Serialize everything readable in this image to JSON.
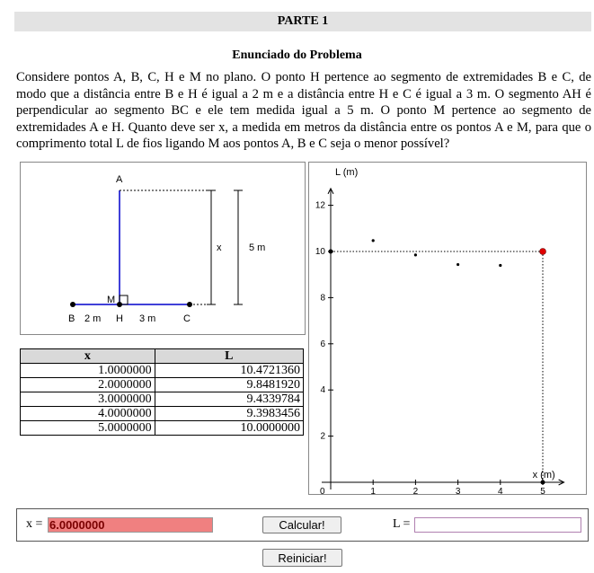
{
  "header": {
    "title": "PARTE 1"
  },
  "statement": {
    "heading": "Enunciado do Problema",
    "text": "Considere pontos A, B, C, H e M no plano. O ponto H pertence ao segmento de extremidades B e C, de modo que a distância entre B e H é igual a 2 m e a distância entre H e C é igual a 3 m. O segmento AH é perpendicular ao segmento BC e ele tem medida igual a 5 m. O ponto M pertence ao segmento de extremidades A e H. Quanto deve ser x, a medida em metros da distância entre os pontos A e M, para que o comprimento total L de fios ligando M aos pontos A, B e C seja o menor possível?"
  },
  "diagram": {
    "label_a": "A",
    "label_b": "B",
    "label_c": "C",
    "label_h": "H",
    "label_m": "M",
    "bh": "2 m",
    "hc": "3 m",
    "x_label": "x",
    "total": "5 m"
  },
  "table": {
    "headers": [
      "x",
      "L"
    ],
    "rows": [
      [
        "1.0000000",
        "10.4721360"
      ],
      [
        "2.0000000",
        "9.8481920"
      ],
      [
        "3.0000000",
        "9.4339784"
      ],
      [
        "4.0000000",
        "9.3983456"
      ],
      [
        "5.0000000",
        "10.0000000"
      ]
    ]
  },
  "chart_data": {
    "type": "scatter",
    "xlabel": "x (m)",
    "ylabel": "L (m)",
    "xlim": [
      0,
      5.5
    ],
    "ylim": [
      0,
      13
    ],
    "x_ticks": [
      1,
      2,
      3,
      4,
      5
    ],
    "y_ticks": [
      2,
      4,
      6,
      8,
      10,
      12
    ],
    "origin_label": "0",
    "points": [
      {
        "x": 1,
        "y": 10.472136
      },
      {
        "x": 2,
        "y": 9.848192
      },
      {
        "x": 3,
        "y": 9.4339784
      },
      {
        "x": 4,
        "y": 9.3983456
      }
    ],
    "highlight": {
      "x": 5,
      "y": 10,
      "color": "#e00000"
    },
    "reference_point": {
      "x": 0,
      "y": 10
    }
  },
  "controls": {
    "x_label": "x =",
    "x_value": "6.0000000",
    "x_bg": "#f08080",
    "calc_label": "Calcular!",
    "l_label": "L =",
    "l_value": "",
    "reset_label": "Reiniciar!"
  }
}
